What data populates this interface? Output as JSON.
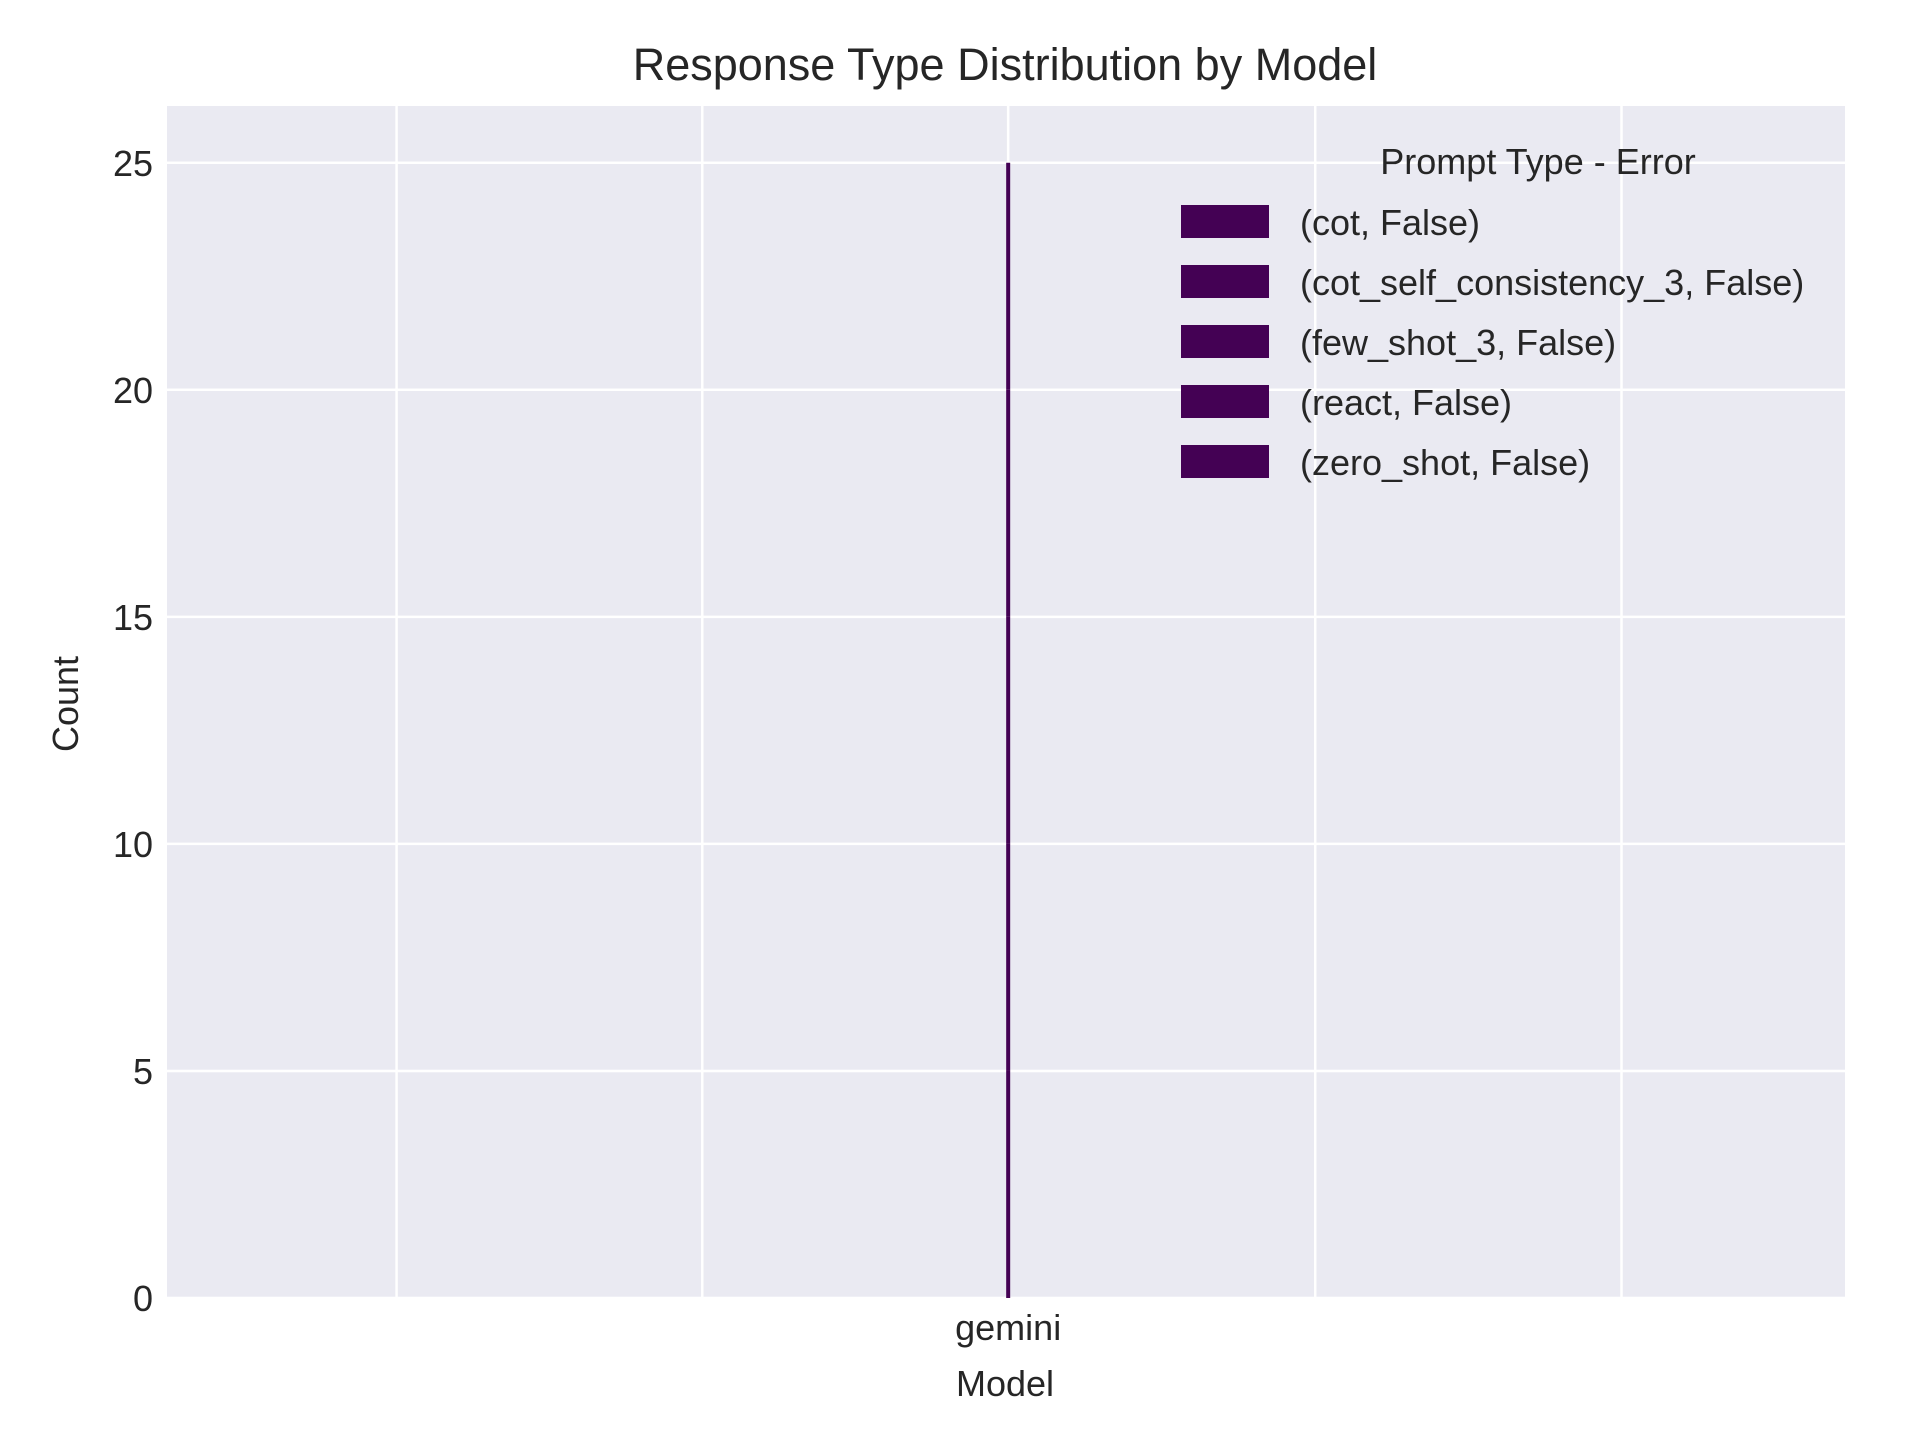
{
  "chart_data": {
    "type": "bar",
    "title": "Response Type Distribution by Model",
    "xlabel": "Model",
    "ylabel": "Count",
    "categories": [
      "gemini"
    ],
    "ylim": [
      0,
      26.25
    ],
    "yticks": [
      0,
      5,
      10,
      15,
      20,
      25
    ],
    "grid": true,
    "stacked": true,
    "legend": {
      "title": "Prompt Type - Error",
      "placement": "top-right"
    },
    "series": [
      {
        "name": "(cot, False)",
        "values": [
          5
        ],
        "color": "#440154"
      },
      {
        "name": "(cot_self_consistency_3, False)",
        "values": [
          5
        ],
        "color": "#440154"
      },
      {
        "name": "(few_shot_3, False)",
        "values": [
          5
        ],
        "color": "#440154"
      },
      {
        "name": "(react, False)",
        "values": [
          5
        ],
        "color": "#440154"
      },
      {
        "name": "(zero_shot, False)",
        "values": [
          5
        ],
        "color": "#440154"
      }
    ],
    "colors": {
      "plot_background": "#eaeaf2",
      "grid": "#ffffff",
      "text": "#262626"
    }
  }
}
